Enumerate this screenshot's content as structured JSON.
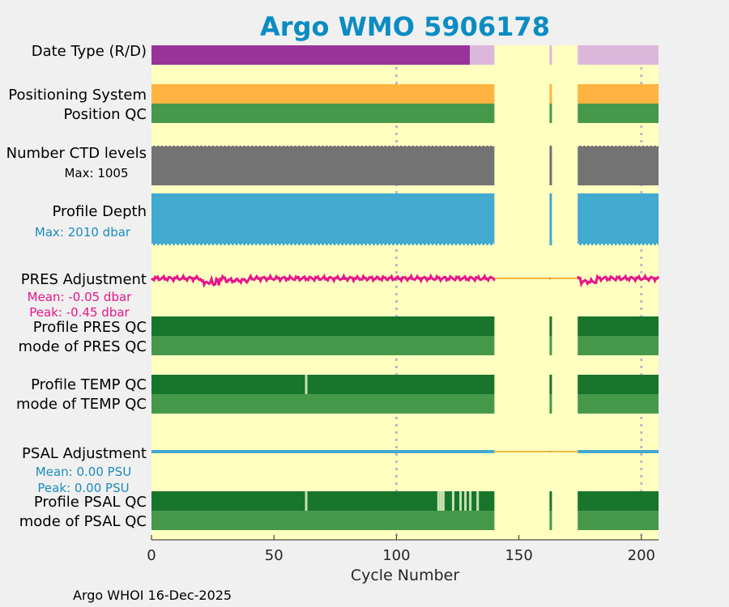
{
  "chart_data": {
    "type": "status-strip",
    "title": "Argo WMO 5906178",
    "xlabel": "Cycle Number",
    "xlim": [
      0,
      207
    ],
    "xticks": [
      0,
      50,
      100,
      150,
      200
    ],
    "grid_x": [
      100,
      200
    ],
    "footer": "Argo WHOI 16-Dec-2025",
    "data_segments": [
      [
        0,
        140
      ],
      [
        162.5,
        163.5
      ],
      [
        174,
        207
      ]
    ],
    "gap_segments": [
      [
        140,
        174
      ]
    ],
    "rows": [
      {
        "key": "date_type",
        "label": "Date Type (R/D)",
        "color_a": "#993399",
        "color_b": "#dcb7dc",
        "split_at": 130
      },
      {
        "key": "positioning_system",
        "label": "Positioning System",
        "color": "#ffb340"
      },
      {
        "key": "position_qc",
        "label": "Position QC",
        "color": "#46994a"
      },
      {
        "key": "ctd_levels",
        "label": "Number CTD levels",
        "sublabel": "Max: 1005",
        "sublabel_color": "#000000",
        "color": "#737373"
      },
      {
        "key": "profile_depth",
        "label": "Profile Depth",
        "sublabel": "Max: 2010 dbar",
        "sublabel_color": "#1a8cbf",
        "color": "#42a9cf"
      },
      {
        "key": "pres_adjustment",
        "label": "PRES Adjustment",
        "sublabel": "Mean: -0.05 dbar",
        "sublabel2": "Peak: -0.45 dbar",
        "sublabel_color": "#e6168a",
        "color": "#e6168a",
        "mean": -0.05,
        "peak": -0.45
      },
      {
        "key": "profile_pres_qc",
        "label": "Profile PRES QC",
        "color": "#17752c"
      },
      {
        "key": "mode_pres_qc",
        "label": "mode of PRES QC",
        "color": "#46994a"
      },
      {
        "key": "profile_temp_qc",
        "label": "Profile TEMP QC",
        "color": "#17752c",
        "marks": [
          63
        ]
      },
      {
        "key": "mode_temp_qc",
        "label": "mode of TEMP QC",
        "color": "#46994a"
      },
      {
        "key": "psal_adjustment",
        "label": "PSAL Adjustment",
        "sublabel": "Mean: 0.00 PSU",
        "sublabel2": "Peak: 0.00 PSU",
        "sublabel_color": "#1a8cbf",
        "color": "#42a9cf",
        "mean": 0.0,
        "peak": 0.0
      },
      {
        "key": "profile_psal_qc",
        "label": "Profile PSAL QC",
        "color": "#17752c",
        "marks": [
          63,
          117,
          118,
          119,
          123,
          126,
          128,
          130,
          133
        ]
      },
      {
        "key": "mode_psal_qc",
        "label": "mode of PSAL QC",
        "color": "#46994a"
      }
    ],
    "colors": {
      "background": "#ffffc0",
      "figure": "#f0f0f0",
      "title": "#0b8cc2",
      "gap_line": "#f5b841",
      "grid": "#b8b8c8",
      "qc_mark": "#c8e0b0"
    }
  }
}
